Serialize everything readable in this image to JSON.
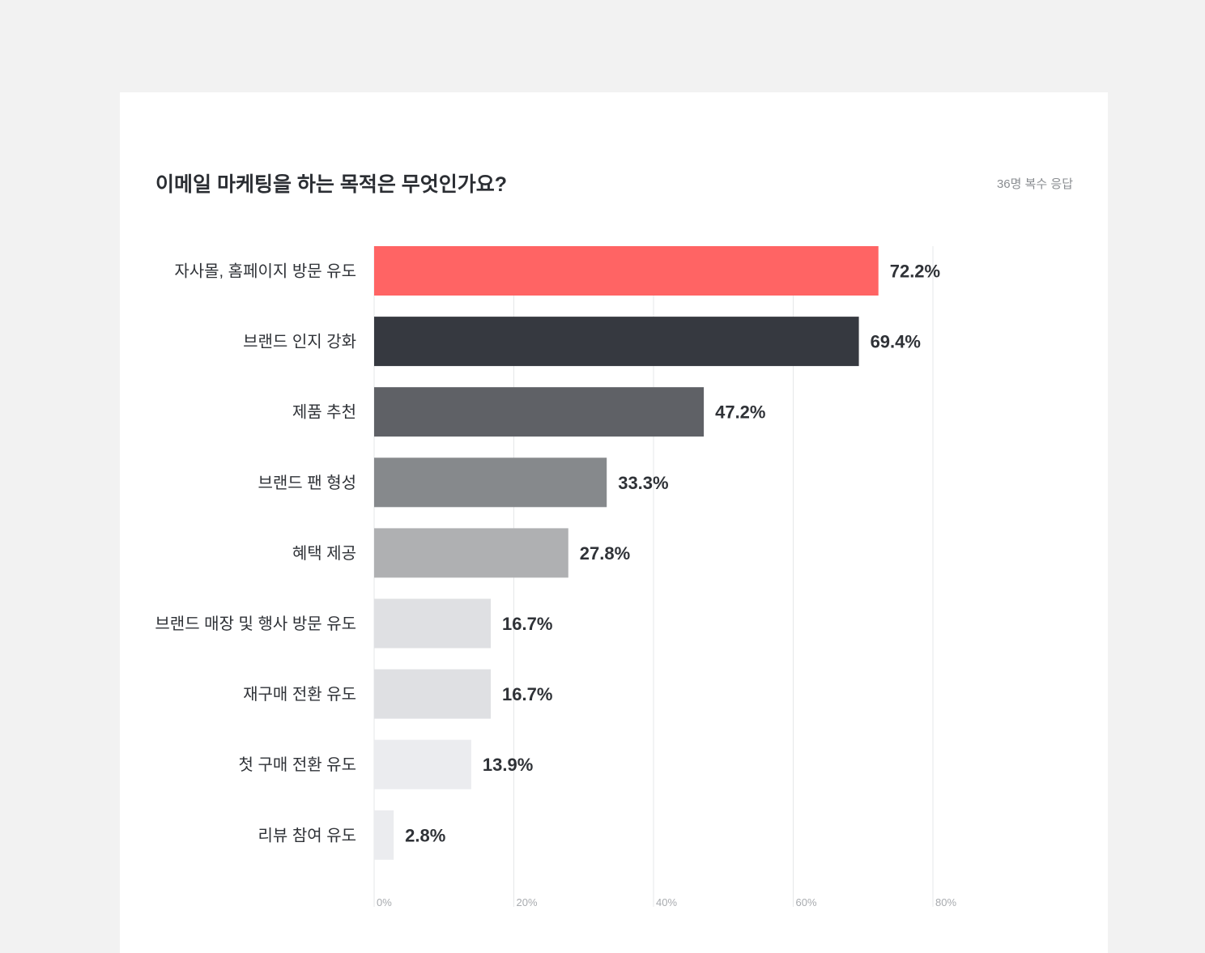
{
  "header": {
    "title": "이메일 마케팅을 하는 목적은 무엇인가요?",
    "respondents": "36명 복수 응답"
  },
  "chart_data": {
    "type": "bar",
    "orientation": "horizontal",
    "title": "이메일 마케팅을 하는 목적은 무엇인가요?",
    "categories": [
      "자사몰, 홈페이지 방문 유도",
      "브랜드 인지 강화",
      "제품 추천",
      "브랜드 팬 형성",
      "혜택 제공",
      "브랜드 매장 및 행사 방문 유도",
      "재구매 전환 유도",
      "첫 구매 전환 유도",
      "리뷰 참여 유도"
    ],
    "values": [
      72.2,
      69.4,
      47.2,
      33.3,
      27.8,
      16.7,
      16.7,
      13.9,
      2.8
    ],
    "value_labels": [
      "72.2%",
      "69.4%",
      "47.2%",
      "33.3%",
      "27.8%",
      "16.7%",
      "16.7%",
      "13.9%",
      "2.8%"
    ],
    "bar_colors": [
      "#ff6464",
      "#363940",
      "#5f6166",
      "#86898c",
      "#afb0b2",
      "#dfe0e3",
      "#dfe0e3",
      "#ebecef",
      "#ebecef"
    ],
    "value_label_colors": [
      "#f05252",
      "#2f3237",
      "#2f3237",
      "#2f3237",
      "#2f3237",
      "#2f3237",
      "#2f3237",
      "#2f3237",
      "#2f3237"
    ],
    "xlim": [
      0,
      80
    ],
    "xticks": [
      0,
      20,
      40,
      60,
      80
    ],
    "xtick_labels": [
      "0%",
      "20%",
      "40%",
      "60%",
      "80%"
    ],
    "grid": true,
    "xlabel": "",
    "ylabel": ""
  }
}
